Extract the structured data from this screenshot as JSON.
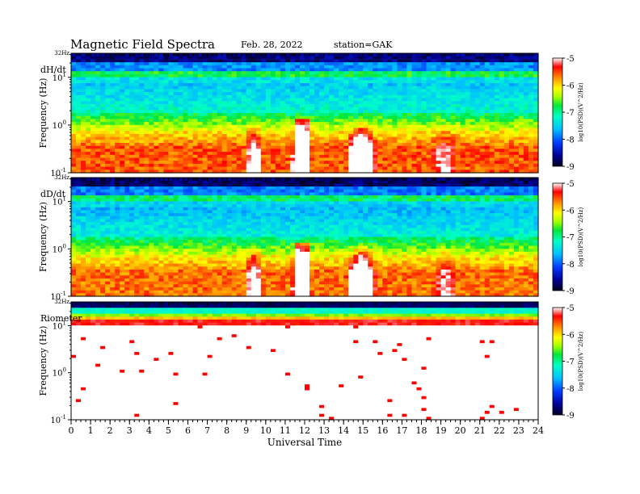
{
  "header": {
    "title": "Magnetic  Field  Spectra",
    "date": "Feb. 28, 2022",
    "station": "station=GAK"
  },
  "chart_data": {
    "type": "heatmap",
    "xlabel": "Universal Time",
    "x_range": [
      0,
      24
    ],
    "x_ticks": [
      "0",
      "1",
      "2",
      "3",
      "4",
      "5",
      "6",
      "7",
      "8",
      "9",
      "10",
      "11",
      "12",
      "13",
      "14",
      "15",
      "16",
      "17",
      "18",
      "19",
      "20",
      "21",
      "22",
      "23",
      "24"
    ],
    "panels": [
      {
        "label": "dH/dt",
        "ylabel": "Frequency  (Hz)",
        "y_scale": "log",
        "y_top_label": "32Hz",
        "y_ticks": [
          {
            "base": "10",
            "exp": "1",
            "value": 10
          },
          {
            "base": "10",
            "exp": "0",
            "value": 1
          },
          {
            "base": "10",
            "exp": "-1",
            "value": 0.1
          }
        ],
        "colorbar": {
          "label": "log10(PSD)(V^2/Hz)",
          "range": [
            -9,
            -5
          ],
          "ticks": [
            "-5",
            "-6",
            "-7",
            "-8",
            "-9"
          ],
          "palette": "rainbow"
        }
      },
      {
        "label": "dD/dt",
        "ylabel": "Frequency  (Hz)",
        "y_scale": "log",
        "y_top_label": "32Hz",
        "y_ticks": [
          {
            "base": "10",
            "exp": "1",
            "value": 10
          },
          {
            "base": "10",
            "exp": "0",
            "value": 1
          },
          {
            "base": "10",
            "exp": "-1",
            "value": 0.1
          }
        ],
        "colorbar": {
          "label": "log10(PSD)(V^2/Hz)",
          "range": [
            -9,
            -5
          ],
          "ticks": [
            "-5",
            "-6",
            "-7",
            "-8",
            "-9"
          ],
          "palette": "rainbow"
        }
      },
      {
        "label": "Riometer",
        "ylabel": "Frequency  (Hz)",
        "y_scale": "log",
        "y_top_label": "32Hz",
        "y_ticks": [
          {
            "base": "10",
            "exp": "1",
            "value": 10
          },
          {
            "base": "10",
            "exp": "0",
            "value": 1
          },
          {
            "base": "10",
            "exp": "-1",
            "value": 0.1
          }
        ],
        "colorbar": {
          "label": "log10(PSD)(V^2/Hz)",
          "range": [
            -9,
            -5
          ],
          "ticks": [
            "-5",
            "-6",
            "-7",
            "-8",
            "-9"
          ],
          "palette": "rainbow"
        }
      }
    ]
  }
}
